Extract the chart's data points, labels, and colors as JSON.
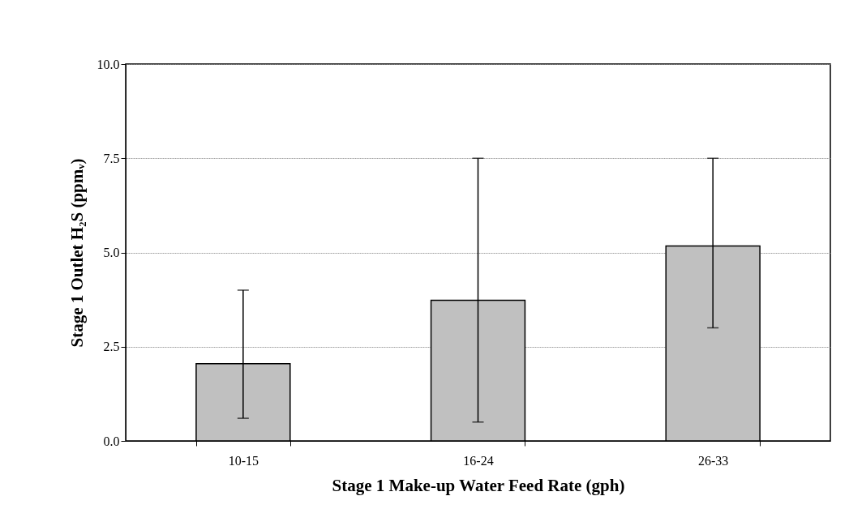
{
  "chart_data": {
    "type": "bar",
    "xlabel": "Stage 1 Make-up Water Feed Rate (gph)",
    "ylabel": "Stage 1 Outlet H₂S (ppmᵥ)",
    "categories": [
      "10-15",
      "16-24",
      "26-33"
    ],
    "values": [
      2.05,
      3.73,
      5.17
    ],
    "errors": [
      [
        0.6,
        4.0
      ],
      [
        0.5,
        7.5
      ],
      [
        3.0,
        7.5
      ]
    ],
    "color": "#c0c0c0",
    "ylim": [
      0,
      10
    ],
    "yticks": [
      {
        "value": 0,
        "label": "0.0"
      },
      {
        "value": 2.5,
        "label": "2.5"
      },
      {
        "value": 5,
        "label": "5.0"
      },
      {
        "value": 7.5,
        "label": "7.5"
      },
      {
        "value": 10,
        "label": "10.0"
      }
    ],
    "grid": "y"
  }
}
